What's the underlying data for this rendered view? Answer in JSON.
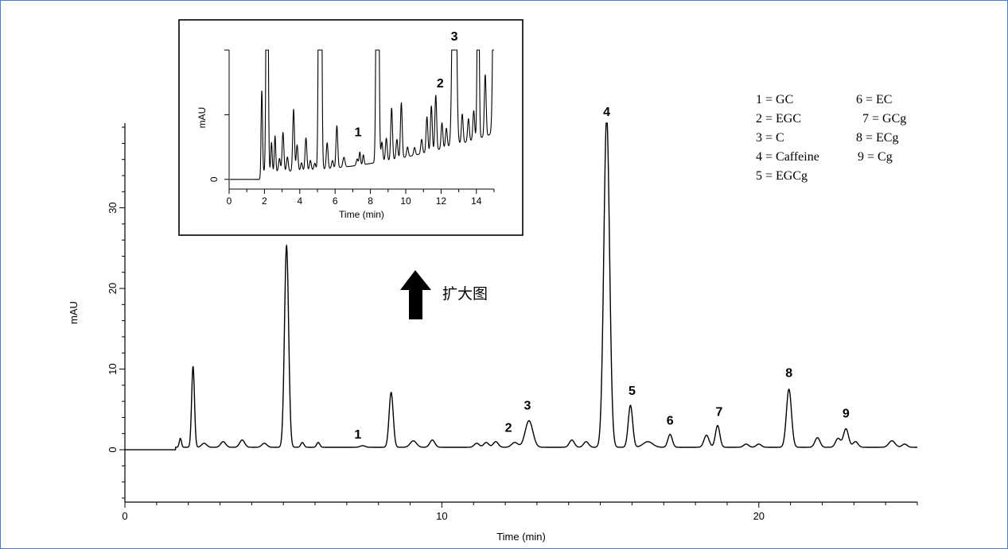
{
  "chart_data": {
    "type": "line",
    "main": {
      "xlabel": "Time (min)",
      "ylabel": "mAU",
      "xlim": [
        0,
        25
      ],
      "ylim": [
        -6.5,
        40.5
      ],
      "x_ticks": [
        0,
        10,
        20
      ],
      "y_ticks": [
        0,
        10,
        20,
        30
      ],
      "baseline": 0.3,
      "peaks": [
        {
          "t": 1.75,
          "h": 1.1,
          "w": 0.035
        },
        {
          "t": 2.15,
          "h": 10,
          "w": 0.045
        },
        {
          "t": 2.5,
          "h": 0.5,
          "w": 0.08
        },
        {
          "t": 3.1,
          "h": 0.7,
          "w": 0.08
        },
        {
          "t": 3.7,
          "h": 0.9,
          "w": 0.08
        },
        {
          "t": 4.4,
          "h": 0.5,
          "w": 0.08
        },
        {
          "t": 5.1,
          "h": 25,
          "w": 0.065
        },
        {
          "t": 5.6,
          "h": 0.6,
          "w": 0.05
        },
        {
          "t": 6.1,
          "h": 0.6,
          "w": 0.05
        },
        {
          "t": 7.5,
          "h": 0.2,
          "w": 0.08
        },
        {
          "t": 8.4,
          "h": 6.8,
          "w": 0.065
        },
        {
          "t": 9.1,
          "h": 0.8,
          "w": 0.1
        },
        {
          "t": 9.7,
          "h": 0.9,
          "w": 0.08
        },
        {
          "t": 11.1,
          "h": 0.5,
          "w": 0.08
        },
        {
          "t": 11.4,
          "h": 0.6,
          "w": 0.08
        },
        {
          "t": 11.7,
          "h": 0.7,
          "w": 0.08
        },
        {
          "t": 12.3,
          "h": 0.6,
          "w": 0.1
        },
        {
          "t": 12.75,
          "h": 3.3,
          "w": 0.12
        },
        {
          "t": 14.1,
          "h": 0.9,
          "w": 0.08
        },
        {
          "t": 14.55,
          "h": 0.7,
          "w": 0.08
        },
        {
          "t": 15.2,
          "h": 41,
          "w": 0.09
        },
        {
          "t": 15.95,
          "h": 5.2,
          "w": 0.07
        },
        {
          "t": 16.5,
          "h": 0.7,
          "w": 0.15
        },
        {
          "t": 17.2,
          "h": 1.6,
          "w": 0.07
        },
        {
          "t": 18.35,
          "h": 1.5,
          "w": 0.08
        },
        {
          "t": 18.7,
          "h": 2.7,
          "w": 0.07
        },
        {
          "t": 19.6,
          "h": 0.4,
          "w": 0.08
        },
        {
          "t": 20.0,
          "h": 0.4,
          "w": 0.08
        },
        {
          "t": 20.95,
          "h": 7.2,
          "w": 0.08
        },
        {
          "t": 21.85,
          "h": 1.2,
          "w": 0.08
        },
        {
          "t": 22.5,
          "h": 1.1,
          "w": 0.08
        },
        {
          "t": 22.75,
          "h": 2.3,
          "w": 0.08
        },
        {
          "t": 23.05,
          "h": 0.7,
          "w": 0.08
        },
        {
          "t": 24.2,
          "h": 0.8,
          "w": 0.1
        },
        {
          "t": 24.6,
          "h": 0.4,
          "w": 0.08
        }
      ],
      "peak_labels": [
        {
          "text": "1",
          "t": 7.35,
          "y": 1.4
        },
        {
          "text": "2",
          "t": 12.1,
          "y": 2.2
        },
        {
          "text": "3",
          "t": 12.7,
          "y": 5.0
        },
        {
          "text": "4",
          "t": 15.2,
          "y": 41.4
        },
        {
          "text": "5",
          "t": 16.0,
          "y": 6.8
        },
        {
          "text": "6",
          "t": 17.2,
          "y": 3.1
        },
        {
          "text": "7",
          "t": 18.75,
          "y": 4.2
        },
        {
          "text": "8",
          "t": 20.95,
          "y": 9.0
        },
        {
          "text": "9",
          "t": 22.75,
          "y": 4.0
        }
      ]
    },
    "inset": {
      "xlabel": "Time (min)",
      "ylabel": "mAU",
      "xlim": [
        0,
        15
      ],
      "x_ticks": [
        0,
        2,
        4,
        6,
        8,
        10,
        12,
        14
      ],
      "y_ticks": [
        0
      ],
      "clip_level": 2.0,
      "peak_labels": [
        "1",
        "2",
        "3"
      ]
    },
    "legend": [
      "1 = GC",
      "2 = EGC",
      "3 = C",
      "4 = Caffeine",
      "5 = EGCg",
      "6 = EC",
      "7 = GCg",
      "8 = ECg",
      "9 = Cg"
    ],
    "annotation": "扩大图"
  }
}
